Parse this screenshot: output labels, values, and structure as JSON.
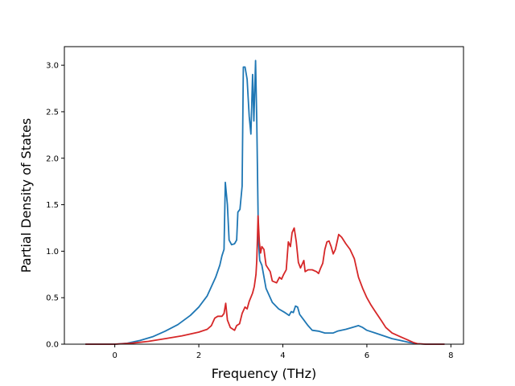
{
  "chart_data": {
    "type": "line",
    "title": "",
    "xlabel": "Frequency (THz)",
    "ylabel": "Partial Density of States",
    "xlim": [
      -1.2,
      8.3
    ],
    "ylim": [
      0.0,
      3.2
    ],
    "xticks": [
      0,
      2,
      4,
      6,
      8
    ],
    "xtick_labels": [
      "0",
      "2",
      "4",
      "6",
      "8"
    ],
    "yticks": [
      0.0,
      0.5,
      1.0,
      1.5,
      2.0,
      2.5,
      3.0
    ],
    "ytick_labels": [
      "0.0",
      "0.5",
      "1.0",
      "1.5",
      "2.0",
      "2.5",
      "3.0"
    ],
    "grid": false,
    "legend": "none",
    "series": [
      {
        "color": "#1f77b4",
        "points": [
          [
            -0.7,
            0.0
          ],
          [
            0.0,
            0.0
          ],
          [
            0.3,
            0.01
          ],
          [
            0.6,
            0.04
          ],
          [
            0.9,
            0.08
          ],
          [
            1.2,
            0.14
          ],
          [
            1.5,
            0.21
          ],
          [
            1.8,
            0.31
          ],
          [
            2.0,
            0.4
          ],
          [
            2.2,
            0.52
          ],
          [
            2.4,
            0.72
          ],
          [
            2.5,
            0.85
          ],
          [
            2.55,
            0.95
          ],
          [
            2.6,
            1.02
          ],
          [
            2.63,
            1.74
          ],
          [
            2.68,
            1.5
          ],
          [
            2.72,
            1.12
          ],
          [
            2.78,
            1.07
          ],
          [
            2.85,
            1.08
          ],
          [
            2.9,
            1.12
          ],
          [
            2.93,
            1.42
          ],
          [
            2.98,
            1.45
          ],
          [
            3.03,
            1.7
          ],
          [
            3.06,
            2.98
          ],
          [
            3.1,
            2.98
          ],
          [
            3.15,
            2.85
          ],
          [
            3.2,
            2.45
          ],
          [
            3.24,
            2.26
          ],
          [
            3.28,
            2.9
          ],
          [
            3.31,
            2.4
          ],
          [
            3.35,
            3.05
          ],
          [
            3.38,
            2.4
          ],
          [
            3.42,
            1.1
          ],
          [
            3.45,
            0.9
          ],
          [
            3.5,
            0.85
          ],
          [
            3.6,
            0.6
          ],
          [
            3.75,
            0.45
          ],
          [
            3.9,
            0.38
          ],
          [
            4.05,
            0.34
          ],
          [
            4.15,
            0.31
          ],
          [
            4.2,
            0.35
          ],
          [
            4.25,
            0.34
          ],
          [
            4.3,
            0.41
          ],
          [
            4.35,
            0.4
          ],
          [
            4.4,
            0.32
          ],
          [
            4.5,
            0.26
          ],
          [
            4.6,
            0.2
          ],
          [
            4.7,
            0.15
          ],
          [
            4.85,
            0.14
          ],
          [
            5.0,
            0.12
          ],
          [
            5.2,
            0.12
          ],
          [
            5.3,
            0.14
          ],
          [
            5.5,
            0.16
          ],
          [
            5.65,
            0.18
          ],
          [
            5.8,
            0.2
          ],
          [
            5.9,
            0.18
          ],
          [
            6.0,
            0.15
          ],
          [
            6.2,
            0.12
          ],
          [
            6.4,
            0.09
          ],
          [
            6.6,
            0.06
          ],
          [
            6.8,
            0.04
          ],
          [
            7.0,
            0.02
          ],
          [
            7.2,
            0.005
          ],
          [
            7.4,
            0.0
          ],
          [
            7.85,
            0.0
          ]
        ]
      },
      {
        "color": "#d62728",
        "points": [
          [
            -0.7,
            0.0
          ],
          [
            0.0,
            0.0
          ],
          [
            0.4,
            0.01
          ],
          [
            0.8,
            0.03
          ],
          [
            1.2,
            0.06
          ],
          [
            1.6,
            0.09
          ],
          [
            2.0,
            0.13
          ],
          [
            2.2,
            0.16
          ],
          [
            2.3,
            0.2
          ],
          [
            2.38,
            0.28
          ],
          [
            2.45,
            0.3
          ],
          [
            2.55,
            0.3
          ],
          [
            2.6,
            0.33
          ],
          [
            2.64,
            0.44
          ],
          [
            2.68,
            0.26
          ],
          [
            2.75,
            0.18
          ],
          [
            2.85,
            0.15
          ],
          [
            2.9,
            0.2
          ],
          [
            2.97,
            0.22
          ],
          [
            3.03,
            0.33
          ],
          [
            3.1,
            0.4
          ],
          [
            3.15,
            0.38
          ],
          [
            3.2,
            0.46
          ],
          [
            3.28,
            0.55
          ],
          [
            3.32,
            0.62
          ],
          [
            3.36,
            0.75
          ],
          [
            3.38,
            0.9
          ],
          [
            3.41,
            1.38
          ],
          [
            3.44,
            1.1
          ],
          [
            3.47,
            0.98
          ],
          [
            3.5,
            1.05
          ],
          [
            3.55,
            1.02
          ],
          [
            3.6,
            0.85
          ],
          [
            3.7,
            0.78
          ],
          [
            3.75,
            0.68
          ],
          [
            3.85,
            0.66
          ],
          [
            3.92,
            0.72
          ],
          [
            3.97,
            0.7
          ],
          [
            4.02,
            0.75
          ],
          [
            4.08,
            0.8
          ],
          [
            4.13,
            1.1
          ],
          [
            4.18,
            1.05
          ],
          [
            4.22,
            1.2
          ],
          [
            4.27,
            1.25
          ],
          [
            4.32,
            1.1
          ],
          [
            4.37,
            0.88
          ],
          [
            4.42,
            0.82
          ],
          [
            4.45,
            0.85
          ],
          [
            4.5,
            0.9
          ],
          [
            4.53,
            0.78
          ],
          [
            4.6,
            0.8
          ],
          [
            4.7,
            0.8
          ],
          [
            4.8,
            0.78
          ],
          [
            4.85,
            0.76
          ],
          [
            4.9,
            0.82
          ],
          [
            4.95,
            0.87
          ],
          [
            5.0,
            1.02
          ],
          [
            5.05,
            1.1
          ],
          [
            5.1,
            1.11
          ],
          [
            5.15,
            1.05
          ],
          [
            5.2,
            0.97
          ],
          [
            5.25,
            1.02
          ],
          [
            5.3,
            1.12
          ],
          [
            5.33,
            1.18
          ],
          [
            5.4,
            1.15
          ],
          [
            5.5,
            1.08
          ],
          [
            5.6,
            1.02
          ],
          [
            5.7,
            0.92
          ],
          [
            5.75,
            0.82
          ],
          [
            5.8,
            0.72
          ],
          [
            5.9,
            0.6
          ],
          [
            6.0,
            0.5
          ],
          [
            6.1,
            0.42
          ],
          [
            6.2,
            0.35
          ],
          [
            6.35,
            0.25
          ],
          [
            6.45,
            0.18
          ],
          [
            6.6,
            0.12
          ],
          [
            6.8,
            0.08
          ],
          [
            6.95,
            0.05
          ],
          [
            7.1,
            0.02
          ],
          [
            7.2,
            0.005
          ],
          [
            7.4,
            0.0
          ],
          [
            7.85,
            0.0
          ]
        ]
      }
    ]
  }
}
